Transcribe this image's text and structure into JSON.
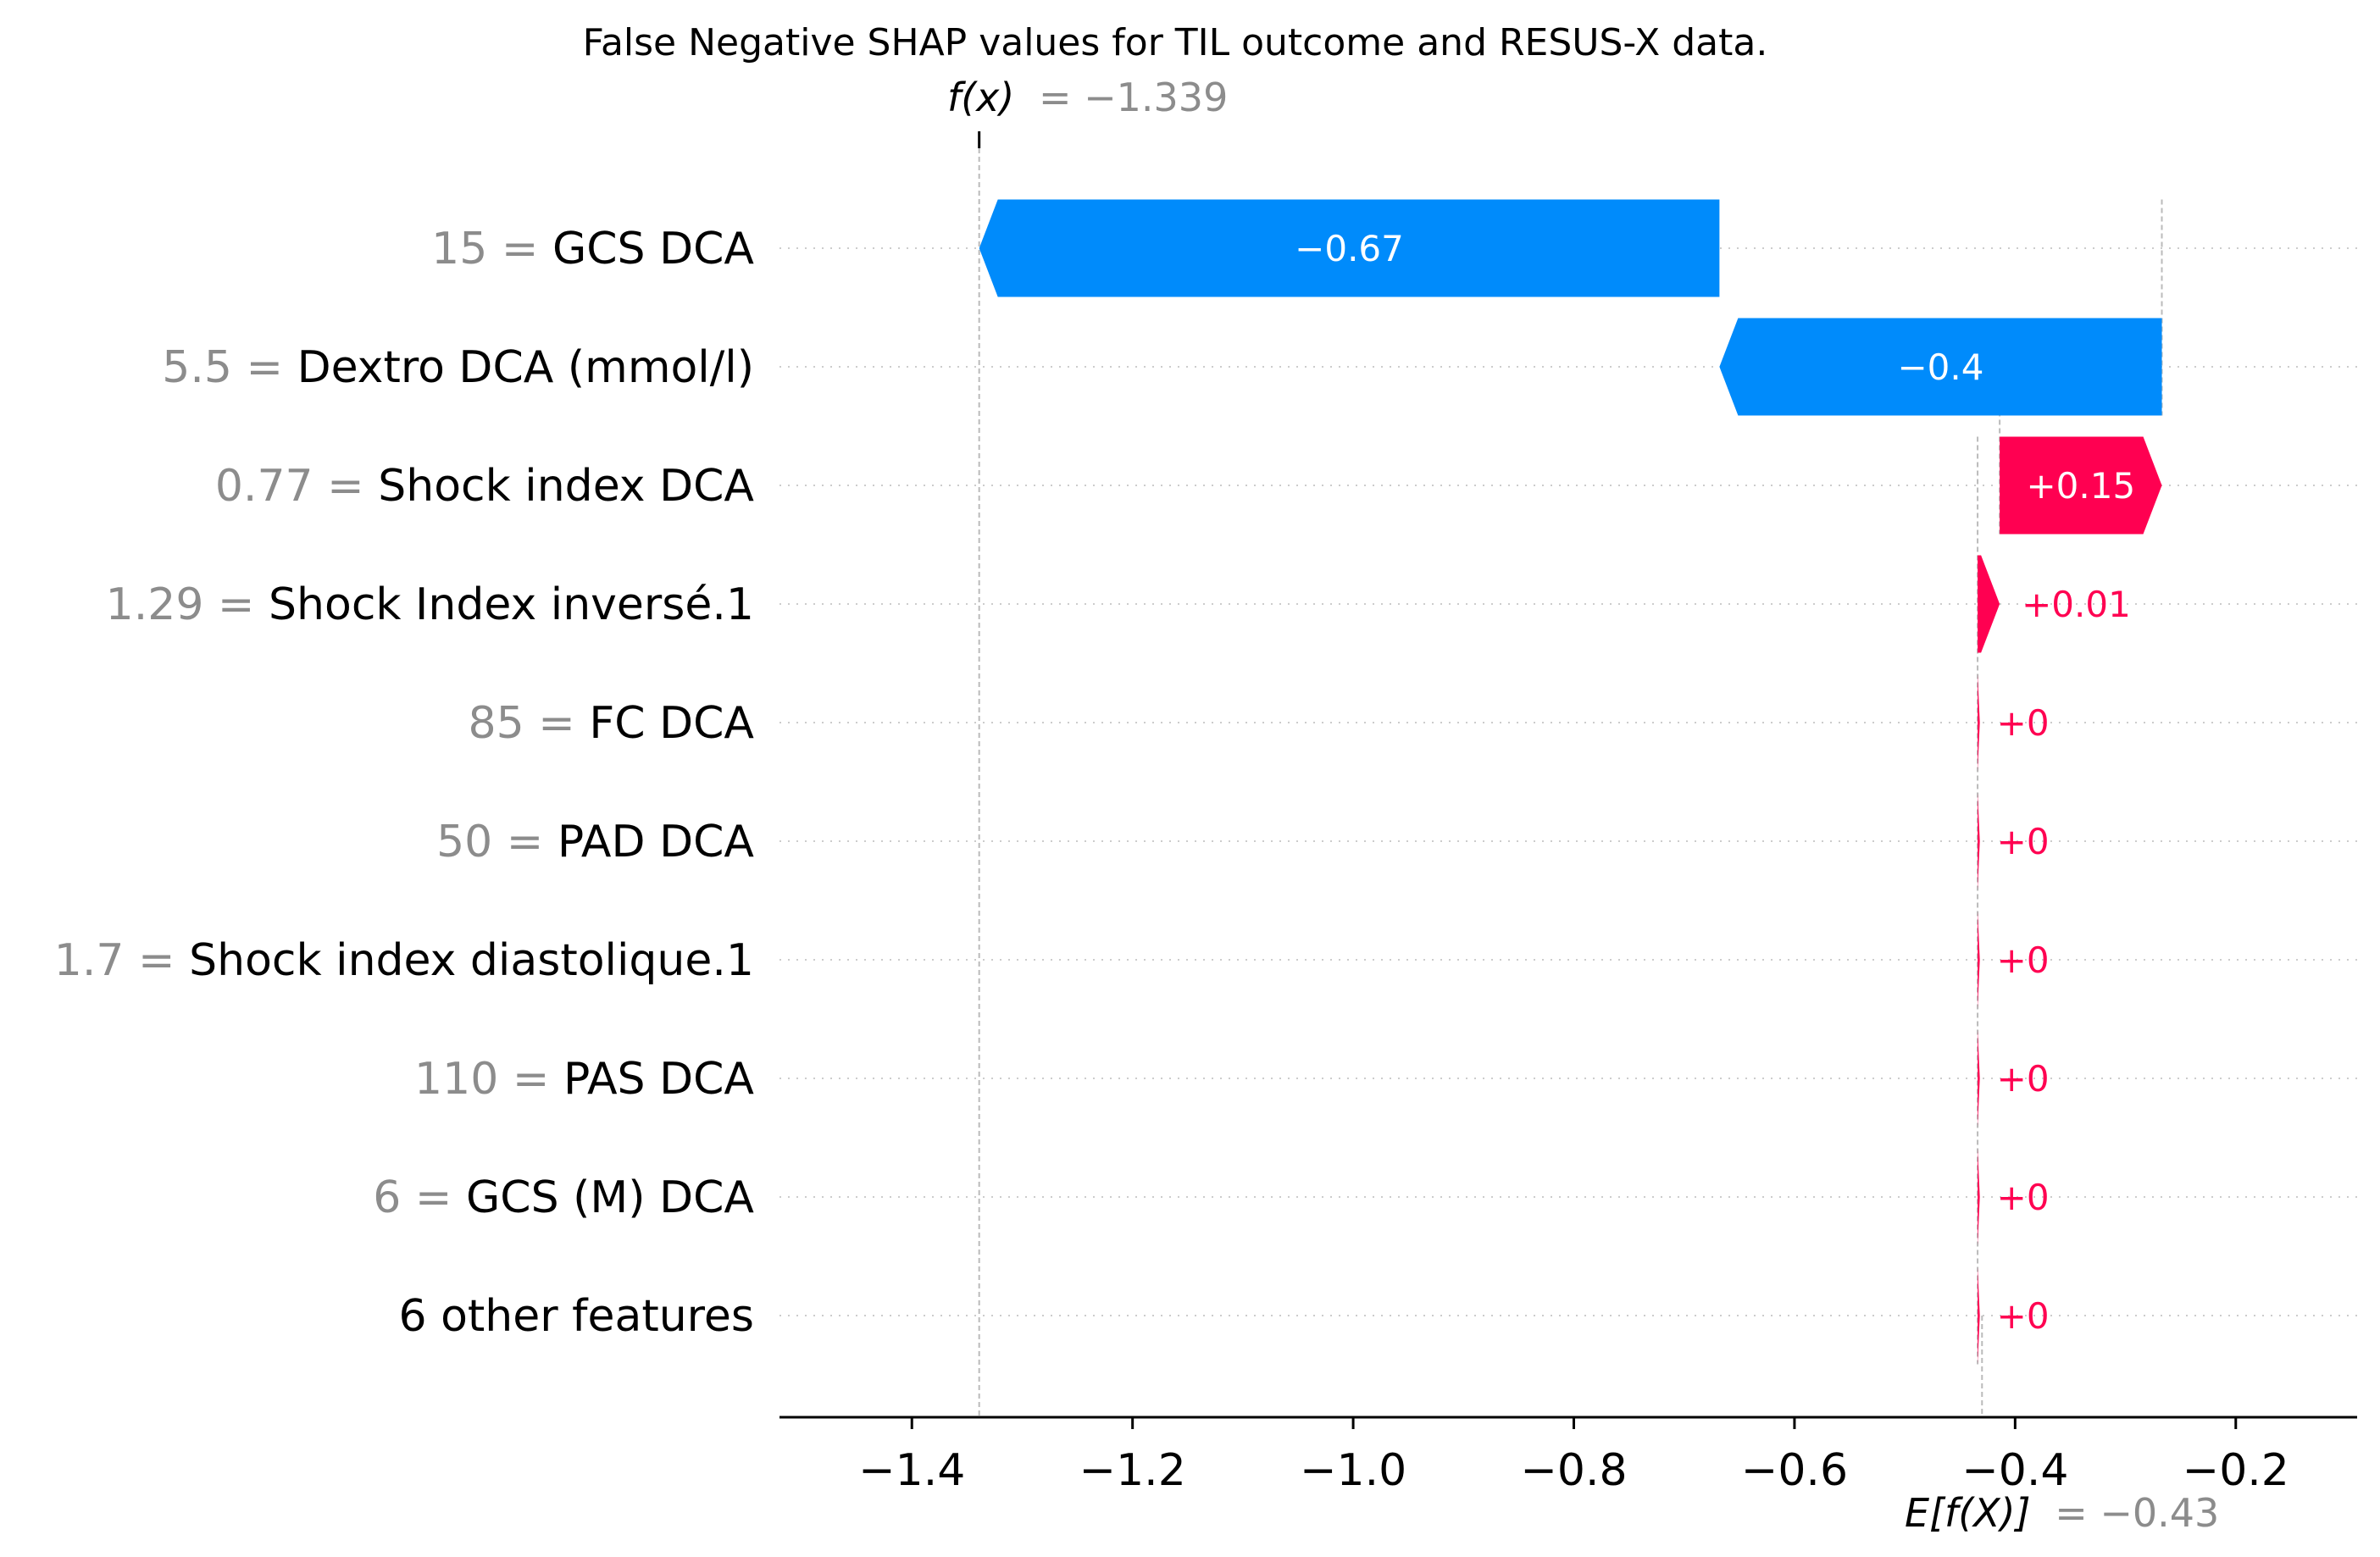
{
  "chart_data": {
    "type": "waterfall",
    "title": "False Negative SHAP values for TIL outcome and RESUS-X data.",
    "fx": {
      "label": "f(x)",
      "value_text": "= −1.339",
      "value": -1.339
    },
    "base": {
      "label": "E[f(X)]",
      "value_text": "= −0.43",
      "value": -0.43
    },
    "xlim": [
      -1.52,
      -0.09
    ],
    "xticks": [
      {
        "value": -1.4,
        "label": "−1.4"
      },
      {
        "value": -1.2,
        "label": "−1.2"
      },
      {
        "value": -1.0,
        "label": "−1.0"
      },
      {
        "value": -0.8,
        "label": "−0.8"
      },
      {
        "value": -0.6,
        "label": "−0.6"
      },
      {
        "value": -0.4,
        "label": "−0.4"
      },
      {
        "value": -0.2,
        "label": "−0.2"
      }
    ],
    "features": [
      {
        "value_text": "15 =",
        "name": "GCS DCA",
        "start": -0.668,
        "end": -1.339,
        "label": "−0.67"
      },
      {
        "value_text": "5.5 =",
        "name": "Dextro DCA (mmol/l)",
        "start": -0.267,
        "end": -0.668,
        "label": "−0.4"
      },
      {
        "value_text": "0.77 =",
        "name": "Shock index DCA",
        "start": -0.414,
        "end": -0.267,
        "label": "+0.15"
      },
      {
        "value_text": "1.29 =",
        "name": "Shock Index inversé.1",
        "start": -0.434,
        "end": -0.414,
        "label": "+0.01"
      },
      {
        "value_text": "85 =",
        "name": "FC  DCA",
        "start": -0.434,
        "end": -0.432,
        "label": "+0"
      },
      {
        "value_text": "50 =",
        "name": "PAD DCA",
        "start": -0.434,
        "end": -0.432,
        "label": "+0"
      },
      {
        "value_text": "1.7 =",
        "name": "Shock index diastolique.1",
        "start": -0.434,
        "end": -0.432,
        "label": "+0"
      },
      {
        "value_text": "110 =",
        "name": "PAS DCA",
        "start": -0.434,
        "end": -0.432,
        "label": "+0"
      },
      {
        "value_text": "6 =",
        "name": "GCS (M) DCA",
        "start": -0.434,
        "end": -0.432,
        "label": "+0"
      },
      {
        "value_text": "",
        "name": "6 other features",
        "start": -0.434,
        "end": -0.432,
        "label": "+0"
      }
    ],
    "colors": {
      "positive": "#ff0051",
      "negative": "#008bfb",
      "grid": "#cccccc",
      "axis": "#000000"
    }
  }
}
